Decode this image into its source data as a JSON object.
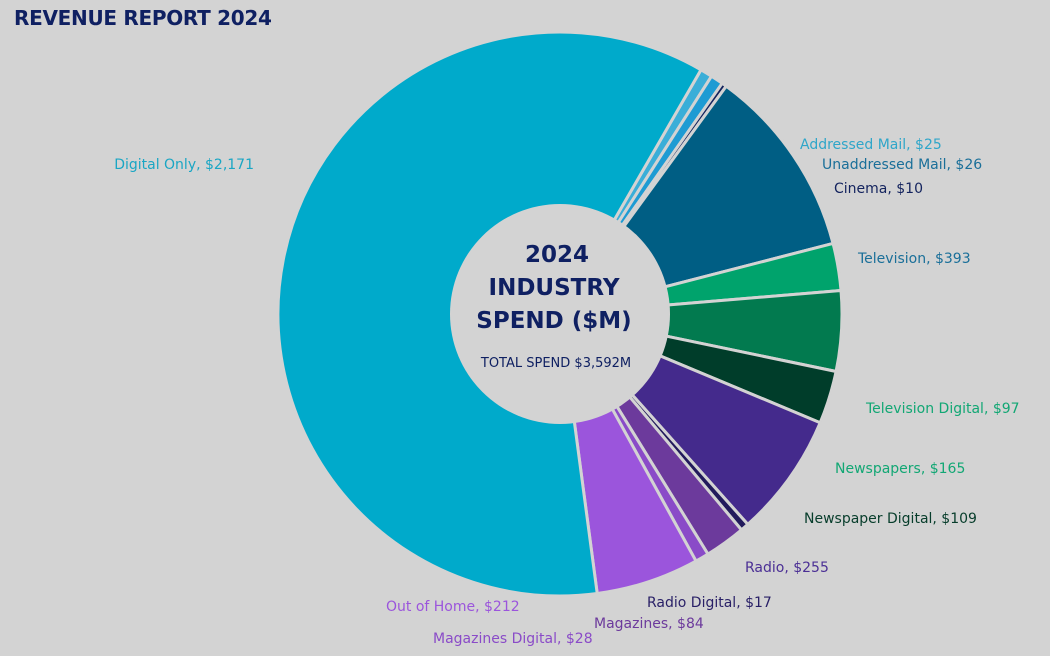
{
  "report_title": "REVENUE REPORT 2024",
  "chart_data": {
    "type": "pie",
    "style": "donut",
    "center": {
      "title_lines": [
        "2024",
        "INDUSTRY",
        "SPEND ($M)"
      ],
      "subtitle": "TOTAL SPEND $3,592M"
    },
    "slices": [
      {
        "name": "Addressed Mail",
        "value": 25,
        "label": "Addressed Mail, $25",
        "color": "#3aaed8",
        "label_color": "#2fa6c9"
      },
      {
        "name": "Unaddressed Mail",
        "value": 26,
        "label": "Unaddressed Mail, $26",
        "color": "#1e9bd3",
        "label_color": "#1a6f99"
      },
      {
        "name": "Cinema",
        "value": 10,
        "label": "Cinema, $10",
        "color": "#13235e",
        "label_color": "#13235e"
      },
      {
        "name": "Television",
        "value": 393,
        "label": "Television, $393",
        "color": "#005e84",
        "label_color": "#1a6f99"
      },
      {
        "name": "Television Digital",
        "value": 97,
        "label": "Television Digital, $97",
        "color": "#00a36c",
        "label_color": "#12a774"
      },
      {
        "name": "Newspapers",
        "value": 165,
        "label": "Newspapers, $165",
        "color": "#027a4f",
        "label_color": "#12a774"
      },
      {
        "name": "Newspaper Digital",
        "value": 109,
        "label": "Newspaper Digital, $109",
        "color": "#003d2a",
        "label_color": "#073d2b"
      },
      {
        "name": "Radio",
        "value": 255,
        "label": "Radio, $255",
        "color": "#442a8c",
        "label_color": "#4b2f95"
      },
      {
        "name": "Radio Digital",
        "value": 17,
        "label": "Radio Digital, $17",
        "color": "#221a5c",
        "label_color": "#281f66"
      },
      {
        "name": "Magazines",
        "value": 84,
        "label": "Magazines, $84",
        "color": "#6c3a9c",
        "label_color": "#6c3a9c"
      },
      {
        "name": "Magazines Digital",
        "value": 28,
        "label": "Magazines Digital, $28",
        "color": "#8a4bc8",
        "label_color": "#8a4bc8"
      },
      {
        "name": "Out of Home",
        "value": 212,
        "label": "Out of Home, $212",
        "color": "#9b55dc",
        "label_color": "#9b55dc"
      },
      {
        "name": "Digital Only",
        "value": 2171,
        "label": "Digital Only, $2,171",
        "color": "#00aacb",
        "label_color": "#1aa6c4"
      }
    ],
    "legend": "none"
  }
}
